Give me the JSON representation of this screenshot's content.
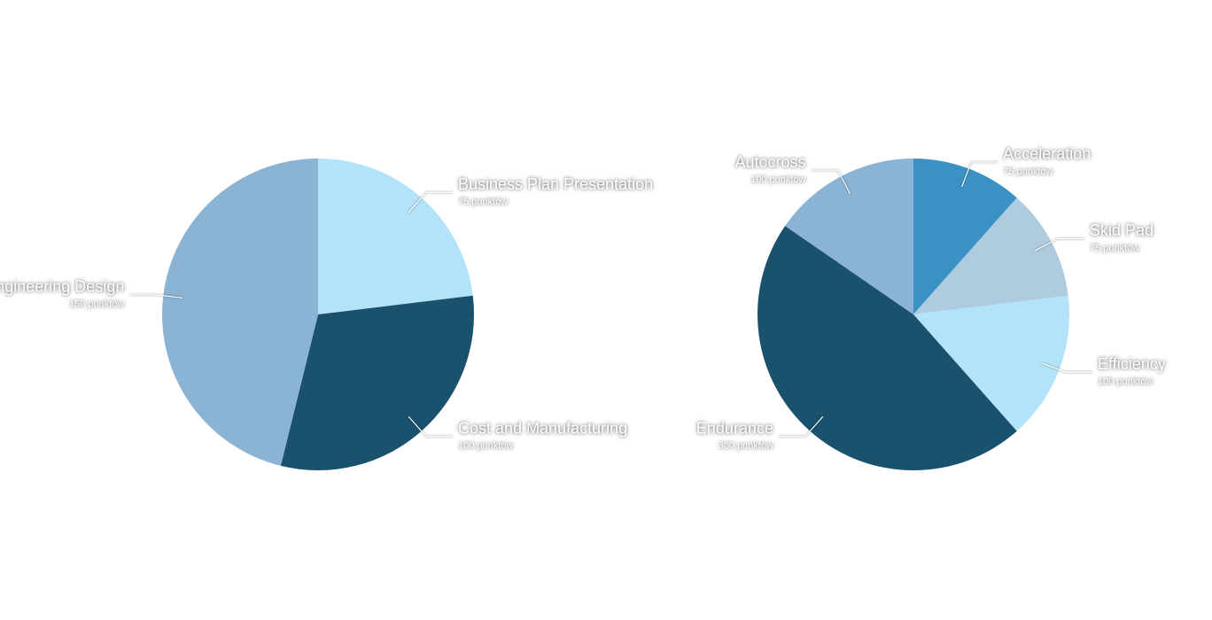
{
  "chart_data": [
    {
      "type": "pie",
      "categories": [
        "Business Plan Presentation",
        "Cost and Manufacturing",
        "Engineering Design"
      ],
      "values": [
        75,
        100,
        150
      ],
      "value_labels": [
        "75 punktów",
        "100 punktów",
        "150 punktów"
      ],
      "colors": [
        "#b3e3f8",
        "#1a526e",
        "#8ab3d4"
      ]
    },
    {
      "type": "pie",
      "categories": [
        "Acceleration",
        "Skid Pad",
        "Efficiency",
        "Endurance",
        "Autocross"
      ],
      "values": [
        75,
        75,
        100,
        300,
        100
      ],
      "value_labels": [
        "75 punktów",
        "75 punktów",
        "100 punktów",
        "300 punktów",
        "100 punktów"
      ],
      "colors": [
        "#3a92c4",
        "#aecbe0",
        "#b3e3f8",
        "#1a526e",
        "#8ab3d4"
      ]
    }
  ]
}
